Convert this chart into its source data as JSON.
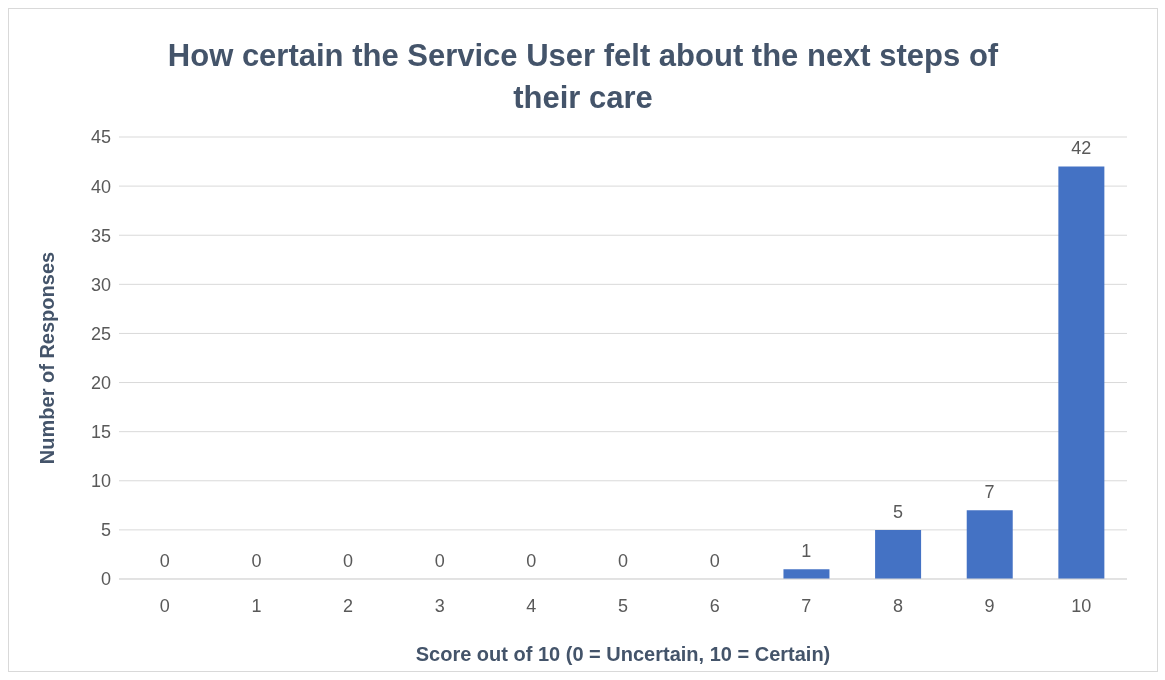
{
  "chart_data": {
    "type": "bar",
    "title": "How certain the Service User felt about the next steps of their care",
    "xlabel": "Score out of 10  (0 = Uncertain, 10 = Certain)",
    "ylabel": "Number of Responses",
    "categories": [
      "0",
      "1",
      "2",
      "3",
      "4",
      "5",
      "6",
      "7",
      "8",
      "9",
      "10"
    ],
    "values": [
      0,
      0,
      0,
      0,
      0,
      0,
      0,
      1,
      5,
      7,
      42
    ],
    "color": "#4472c4",
    "ylim": [
      0,
      45
    ],
    "yticks": [
      0,
      5,
      10,
      15,
      20,
      25,
      30,
      35,
      40,
      45
    ],
    "grid": "y",
    "data_labels": true
  }
}
